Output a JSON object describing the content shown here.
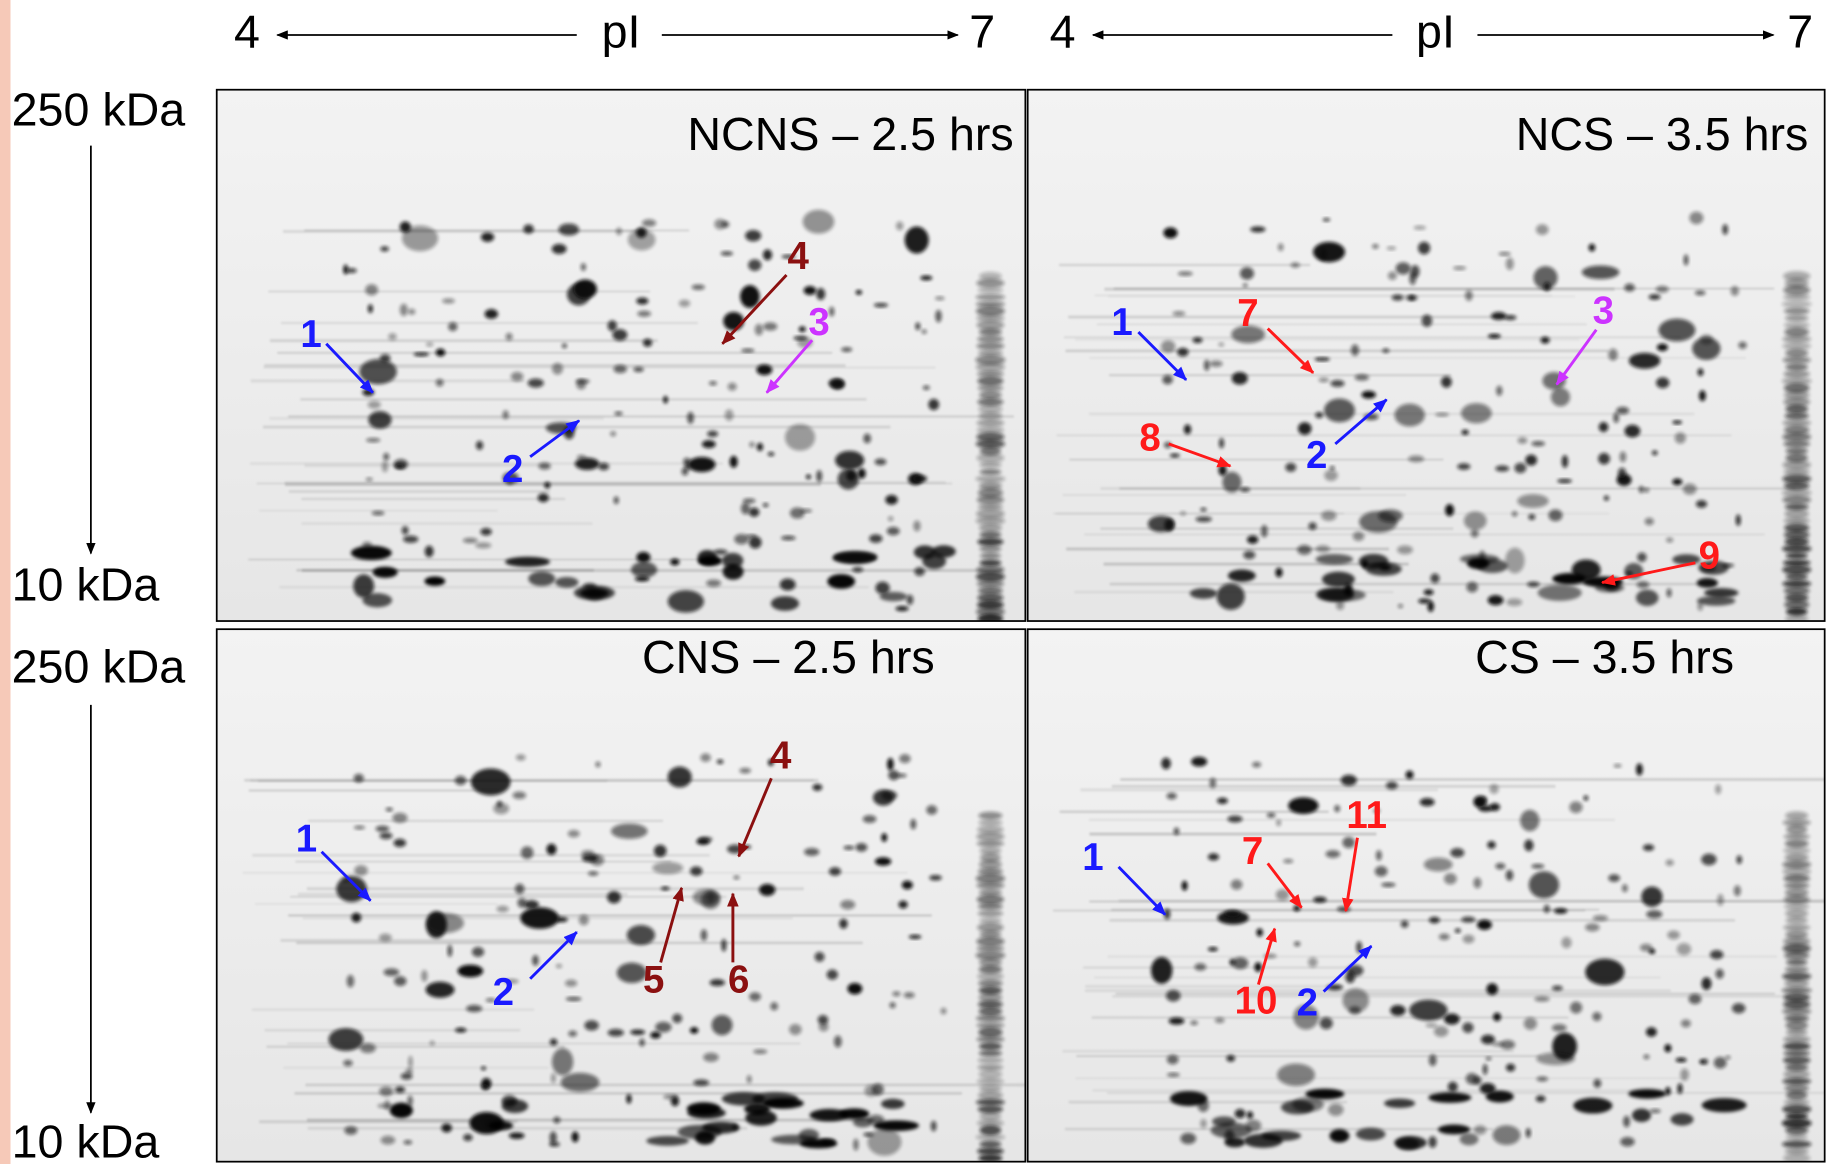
{
  "axes": {
    "top": [
      {
        "low": "4",
        "label": "pI",
        "high": "7"
      },
      {
        "low": "4",
        "label": "pI",
        "high": "7"
      }
    ],
    "left": [
      {
        "top": "250 kDa",
        "bottom": "10 kDa"
      },
      {
        "top": "250 kDa",
        "bottom": "10 kDa"
      }
    ]
  },
  "panels": [
    {
      "title": "NCNS – 2.5 hrs",
      "annotations": [
        {
          "label": "1",
          "color": "#1a1aff"
        },
        {
          "label": "2",
          "color": "#1a1aff"
        },
        {
          "label": "3",
          "color": "#cc33ff"
        },
        {
          "label": "4",
          "color": "#8b1010"
        }
      ]
    },
    {
      "title": "NCS – 3.5 hrs",
      "annotations": [
        {
          "label": "1",
          "color": "#1a1aff"
        },
        {
          "label": "7",
          "color": "#ff1a1a"
        },
        {
          "label": "3",
          "color": "#cc33ff"
        },
        {
          "label": "8",
          "color": "#ff1a1a"
        },
        {
          "label": "2",
          "color": "#1a1aff"
        },
        {
          "label": "9",
          "color": "#ff1a1a"
        }
      ]
    },
    {
      "title": "CNS – 2.5 hrs",
      "annotations": [
        {
          "label": "1",
          "color": "#1a1aff"
        },
        {
          "label": "2",
          "color": "#1a1aff"
        },
        {
          "label": "4",
          "color": "#8b1010"
        },
        {
          "label": "5",
          "color": "#8b1010"
        },
        {
          "label": "6",
          "color": "#8b1010"
        }
      ]
    },
    {
      "title": "CS – 3.5 hrs",
      "annotations": [
        {
          "label": "1",
          "color": "#1a1aff"
        },
        {
          "label": "7",
          "color": "#ff1a1a"
        },
        {
          "label": "11",
          "color": "#ff1a1a"
        },
        {
          "label": "10",
          "color": "#ff1a1a"
        },
        {
          "label": "2",
          "color": "#1a1aff"
        }
      ]
    }
  ]
}
